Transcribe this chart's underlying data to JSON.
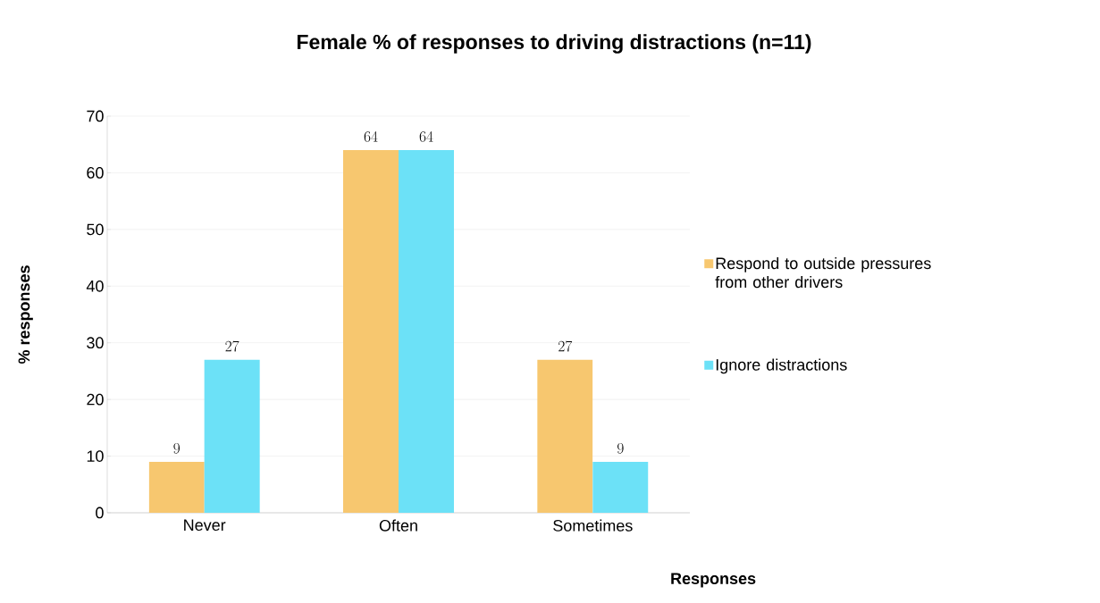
{
  "chart_data": {
    "type": "bar",
    "title": "Female % of responses to driving distractions (n=11)",
    "xlabel": "Responses",
    "ylabel": "% responses",
    "categories": [
      "Never",
      "Often",
      "Sometimes"
    ],
    "series": [
      {
        "name": "Respond to outside pressures from other drivers",
        "color": "#f7c76f",
        "values": [
          9,
          64,
          27
        ]
      },
      {
        "name": "Ignore distractions",
        "color": "#6ce1f7",
        "values": [
          27,
          64,
          9
        ]
      }
    ],
    "ylim": [
      0,
      70
    ],
    "yticks": [
      0,
      10,
      20,
      30,
      40,
      50,
      60,
      70
    ],
    "grid": "y",
    "legend": "right",
    "data_labels": true
  }
}
